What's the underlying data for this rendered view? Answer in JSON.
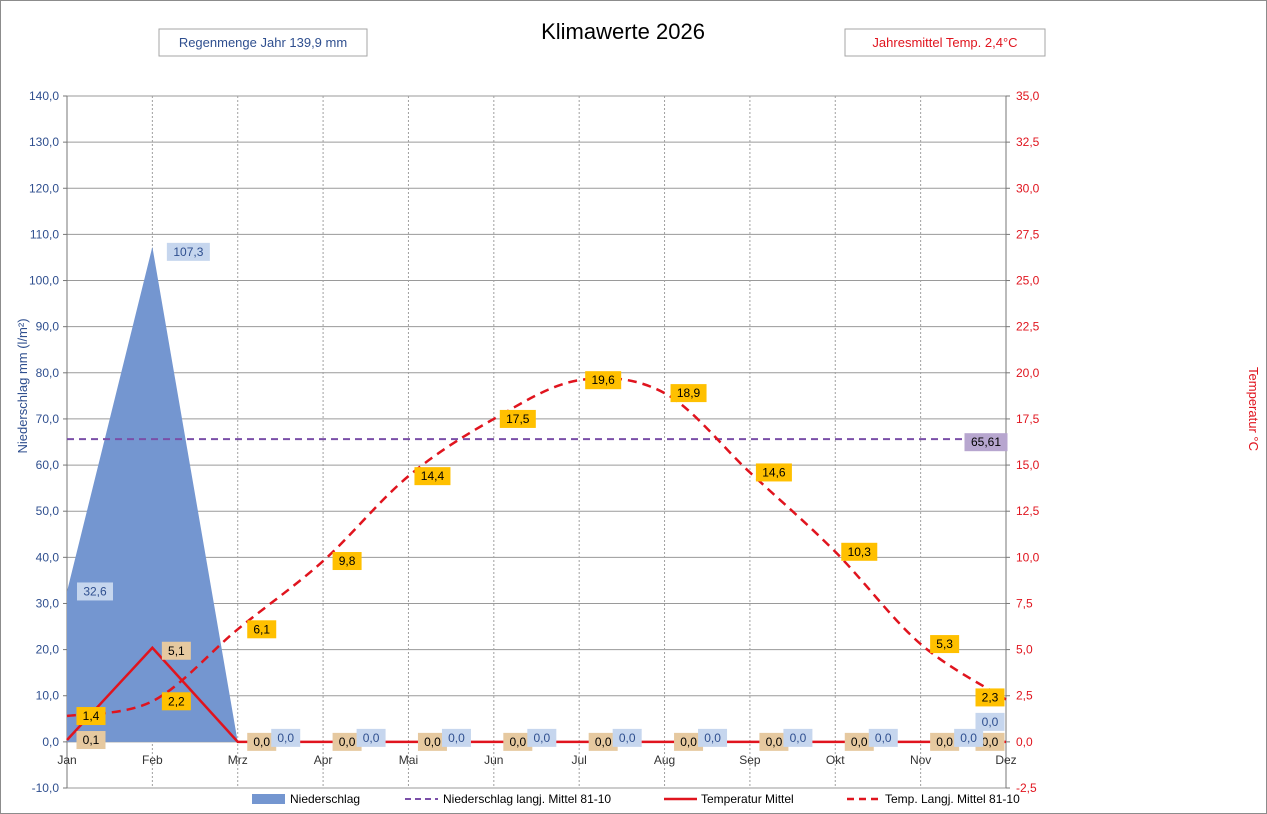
{
  "chart_data": {
    "type": "area",
    "title": "Klimawerte 2026",
    "info_left": "Regenmenge Jahr  139,9 mm",
    "info_right": "Jahresmittel Temp.  2,4°C",
    "ylabel": "Niederschlag mm  (l/m²)",
    "y2label": "Temperatur °C",
    "categories": [
      "Jan",
      "Feb",
      "Mrz",
      "Apr",
      "Mai",
      "Jun",
      "Jul",
      "Aug",
      "Sep",
      "Okt",
      "Nov",
      "Dez"
    ],
    "ylim": [
      -10,
      140
    ],
    "y2lim": [
      -2.5,
      35
    ],
    "y_ticks": [
      "-10,0",
      "0,0",
      "10,0",
      "20,0",
      "30,0",
      "40,0",
      "50,0",
      "60,0",
      "70,0",
      "80,0",
      "90,0",
      "100,0",
      "110,0",
      "120,0",
      "130,0",
      "140,0"
    ],
    "y2_ticks": [
      "-2,5",
      "0,0",
      "2,5",
      "5,0",
      "7,5",
      "10,0",
      "12,5",
      "15,0",
      "17,5",
      "20,0",
      "22,5",
      "25,0",
      "27,5",
      "30,0",
      "32,5",
      "35,0"
    ],
    "grid": true,
    "legend_position": "bottom",
    "series": [
      {
        "name": "Niederschlag",
        "type": "area",
        "axis": "left",
        "color": "#7496d0",
        "values": [
          32.6,
          107.3,
          0,
          0,
          0,
          0,
          0,
          0,
          0,
          0,
          0,
          0
        ],
        "labels": [
          "32,6",
          "107,3",
          "0,0",
          "0,0",
          "0,0",
          "0,0",
          "0,0",
          "0,0",
          "0,0",
          "0,0",
          "0,0",
          "0,0"
        ]
      },
      {
        "name": "Niederschlag langj. Mittel 81-10",
        "type": "line-dashed",
        "axis": "left",
        "color": "#7a4fa8",
        "values": [
          65.61,
          65.61,
          65.61,
          65.61,
          65.61,
          65.61,
          65.61,
          65.61,
          65.61,
          65.61,
          65.61,
          65.61
        ],
        "end_label": "65,61"
      },
      {
        "name": "Temperatur Mittel",
        "type": "line",
        "axis": "right",
        "color": "#e0141e",
        "values": [
          0.1,
          5.1,
          0,
          0,
          0,
          0,
          0,
          0,
          0,
          0,
          0,
          0
        ],
        "labels": [
          "0,1",
          "5,1",
          "0,0",
          "0,0",
          "0,0",
          "0,0",
          "0,0",
          "0,0",
          "0,0",
          "0,0",
          "0,0",
          "0,0"
        ]
      },
      {
        "name": "Temp. Langj. Mittel 81-10",
        "type": "line-dashed",
        "axis": "right",
        "color": "#e0141e",
        "values": [
          1.4,
          2.2,
          6.1,
          9.8,
          14.4,
          17.5,
          19.6,
          18.9,
          14.6,
          10.3,
          5.3,
          2.3
        ],
        "labels": [
          "1,4",
          "2,2",
          "6,1",
          "9,8",
          "14,4",
          "17,5",
          "19,6",
          "18,9",
          "14,6",
          "10,3",
          "5,3",
          "2,3"
        ]
      }
    ],
    "colors": {
      "precip_area": "#7496d0",
      "precip_mean": "#7a4fa8",
      "temperature": "#e0141e",
      "label_orange": "#ffc000",
      "label_tan": "#e6c9a0",
      "label_blue": "#c6d6ee",
      "label_purple": "#b7a6cf"
    }
  }
}
